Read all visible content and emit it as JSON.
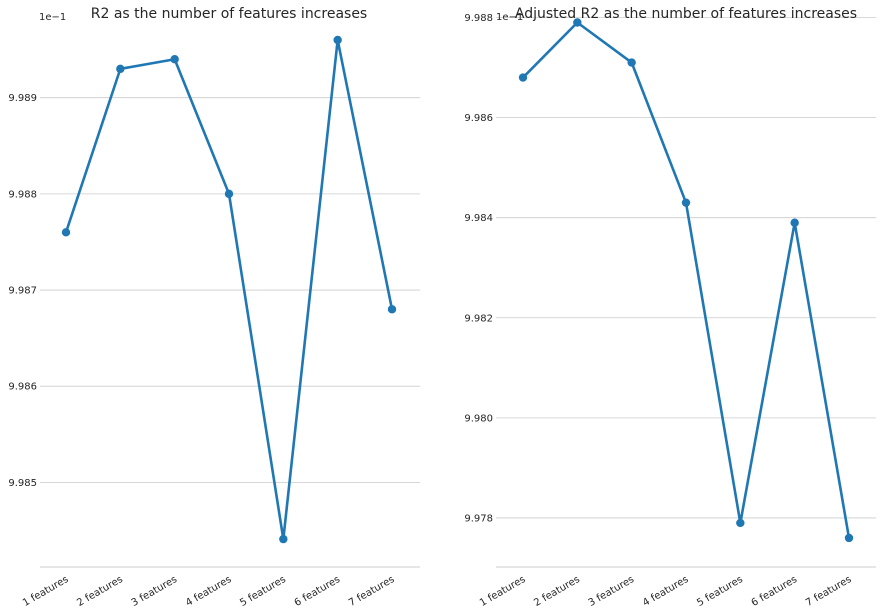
{
  "chart_data": [
    {
      "type": "line",
      "title": "R2 as the number of features increases",
      "offset_label": "1e−1",
      "categories": [
        "1 features",
        "2 features",
        "3 features",
        "4 features",
        "5 features",
        "6 features",
        "7 features"
      ],
      "values": [
        9.9876,
        9.9893,
        9.9894,
        9.988,
        9.98441,
        9.9896,
        9.9868
      ],
      "yticks": [
        9.985,
        9.986,
        9.987,
        9.988,
        9.989
      ],
      "ytick_labels": [
        "9.985",
        "9.986",
        "9.987",
        "9.988",
        "9.989"
      ],
      "ylim": [
        9.98412,
        9.98986
      ],
      "grid": true,
      "color": "#1f77b4"
    },
    {
      "type": "line",
      "title": "Adjusted R2 as the number of features increases",
      "offset_label": "1e−1",
      "categories": [
        "1 features",
        "2 features",
        "3 features",
        "4 features",
        "5 features",
        "6 features",
        "7 features"
      ],
      "values": [
        9.9868,
        9.9879,
        9.9871,
        9.9843,
        9.9779,
        9.9839,
        9.9776
      ],
      "yticks": [
        9.978,
        9.98,
        9.982,
        9.984,
        9.986,
        9.988
      ],
      "ytick_labels": [
        "9.978",
        "9.980",
        "9.982",
        "9.984",
        "9.986",
        "9.988"
      ],
      "ylim": [
        9.97702,
        9.98805
      ],
      "grid": true,
      "color": "#1f77b4"
    }
  ]
}
